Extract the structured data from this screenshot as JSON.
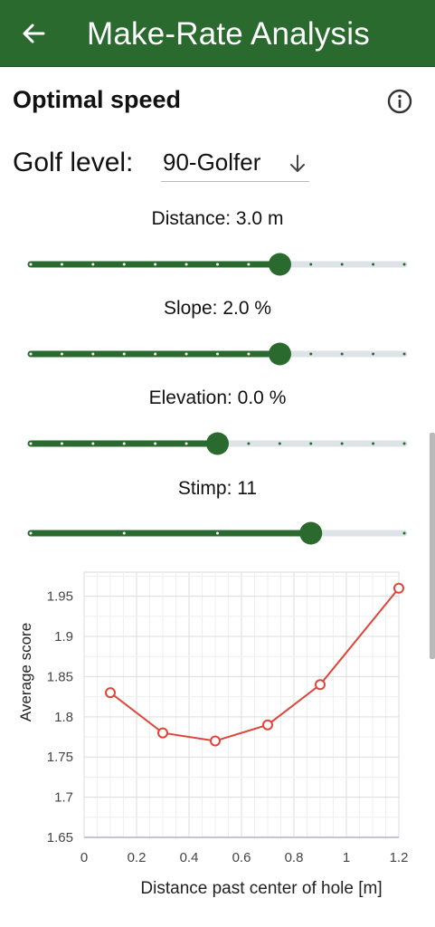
{
  "app": {
    "title": "Make-Rate Analysis",
    "colors": {
      "primary": "#2a6a2f",
      "track": "#dde3e6",
      "series": "#e0453a"
    },
    "back_icon": "arrow-left-icon"
  },
  "section": {
    "title": "Optimal speed",
    "info_icon": "info-icon"
  },
  "golf_level": {
    "label": "Golf level:",
    "value": "90-Golfer",
    "icon": "arrow-down-icon"
  },
  "sliders": [
    {
      "label": "Distance: 3.0 m",
      "value_fraction": 0.667,
      "ticks": 13
    },
    {
      "label": "Slope: 2.0 %",
      "value_fraction": 0.667,
      "ticks": 13
    },
    {
      "label": "Elevation: 0.0 %",
      "value_fraction": 0.5,
      "ticks": 13
    },
    {
      "label": "Stimp: 11",
      "value_fraction": 0.75,
      "ticks": 5
    }
  ],
  "chart_data": {
    "type": "line",
    "xlabel": "Distance past center of hole [m]",
    "ylabel": "Average score",
    "xlim": [
      0,
      1.2
    ],
    "ylim": [
      1.65,
      1.98
    ],
    "xticks": [
      "0",
      "0.2",
      "0.4",
      "0.6",
      "0.8",
      "1",
      "1.2"
    ],
    "yticks": [
      "1.65",
      "1.7",
      "1.75",
      "1.8",
      "1.85",
      "1.9",
      "1.95"
    ],
    "grid": true,
    "series": [
      {
        "x": [
          0.1,
          0.3,
          0.5,
          0.7,
          0.9,
          1.2
        ],
        "values": [
          1.83,
          1.78,
          1.77,
          1.79,
          1.84,
          1.96
        ]
      }
    ]
  }
}
